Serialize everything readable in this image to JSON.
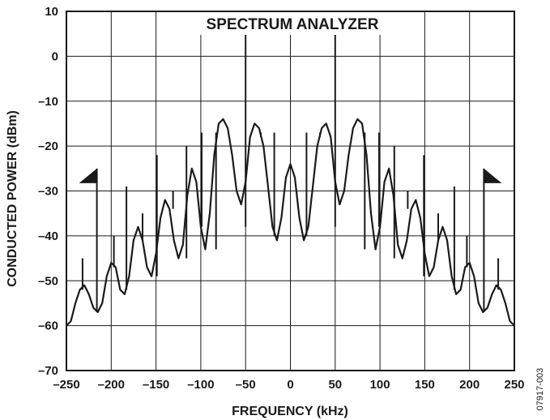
{
  "chart_data": {
    "type": "line",
    "title": "SPECTRUM ANALYZER",
    "xlabel": "FREQUENCY (kHz)",
    "ylabel": "CONDUCTED POWER (dBm)",
    "xlim": [
      -250,
      250
    ],
    "ylim": [
      -70,
      10
    ],
    "xticks": [
      -250,
      -200,
      -150,
      -100,
      -50,
      0,
      50,
      100,
      150,
      200,
      250
    ],
    "xtick_labels": [
      "–250",
      "–200",
      "–150",
      "–100",
      "–50",
      "0",
      "50",
      "100",
      "150",
      "200",
      "250"
    ],
    "yticks": [
      10,
      0,
      -10,
      -20,
      -30,
      -40,
      -50,
      -60,
      -70
    ],
    "ytick_labels": [
      "10",
      "0",
      "–10",
      "–20",
      "–30",
      "–40",
      "–50",
      "–60",
      "–70"
    ],
    "grid": true,
    "line_color": "#1a1a1a",
    "series": [
      {
        "x": [
          -250,
          -245,
          -240,
          -235,
          -230,
          -225,
          -220,
          -215,
          -210,
          -205,
          -200,
          -195,
          -190,
          -185,
          -180,
          -175,
          -170,
          -165,
          -160,
          -155,
          -150,
          -145,
          -140,
          -135,
          -130,
          -125,
          -120,
          -115,
          -110,
          -105,
          -100,
          -95,
          -90,
          -85,
          -80,
          -75,
          -70,
          -65,
          -60,
          -55,
          -50,
          -45,
          -40,
          -35,
          -30,
          -25,
          -20,
          -15,
          -10,
          -5,
          0,
          5,
          10,
          15,
          20,
          25,
          30,
          35,
          40,
          45,
          50,
          55,
          60,
          65,
          70,
          75,
          80,
          85,
          90,
          95,
          100,
          105,
          110,
          115,
          120,
          125,
          130,
          135,
          140,
          145,
          150,
          155,
          160,
          165,
          170,
          175,
          180,
          185,
          190,
          195,
          200,
          205,
          210,
          215,
          220,
          225,
          230,
          235,
          240,
          245,
          250
        ],
        "y": [
          -60,
          -59,
          -55,
          -52,
          -51,
          -53,
          -56,
          -57,
          -55,
          -49,
          -46,
          -47,
          -52,
          -53,
          -49,
          -41,
          -38,
          -41,
          -47,
          -49,
          -44,
          -36,
          -32,
          -34,
          -41,
          -45,
          -42,
          -31,
          -25,
          -28,
          -38,
          -43,
          -35,
          -22,
          -15,
          -14,
          -16,
          -22,
          -30,
          -33,
          -28,
          -18,
          -15,
          -16,
          -20,
          -29,
          -38,
          -41,
          -36,
          -27,
          -24,
          -27,
          -36,
          -41,
          -38,
          -29,
          -20,
          -16,
          -15,
          -18,
          -28,
          -33,
          -30,
          -22,
          -16,
          -14,
          -15,
          -22,
          -35,
          -43,
          -38,
          -28,
          -25,
          -31,
          -42,
          -45,
          -41,
          -34,
          -32,
          -36,
          -44,
          -49,
          -47,
          -41,
          -38,
          -41,
          -49,
          -53,
          -52,
          -47,
          -46,
          -49,
          -55,
          -57,
          -56,
          -53,
          -51,
          -52,
          -55,
          -59,
          -60
        ]
      }
    ],
    "spurs": [
      {
        "x": -250,
        "peak": -38,
        "base": -60
      },
      {
        "x": -232,
        "peak": -45,
        "base": -52
      },
      {
        "x": -216,
        "peak": -25,
        "base": -57
      },
      {
        "x": -197,
        "peak": -40,
        "base": -47
      },
      {
        "x": -183,
        "peak": -29,
        "base": -52
      },
      {
        "x": -165,
        "peak": -35,
        "base": -41
      },
      {
        "x": -149,
        "peak": -22,
        "base": -49
      },
      {
        "x": -131,
        "peak": -30,
        "base": -34
      },
      {
        "x": -116,
        "peak": -20,
        "base": -45
      },
      {
        "x": -99,
        "peak": -17,
        "base": -38
      },
      {
        "x": -83,
        "peak": -17,
        "base": -43
      },
      {
        "x": -50,
        "peak": 5,
        "base": -38
      },
      {
        "x": -33,
        "peak": -18,
        "base": -17
      },
      {
        "x": -18,
        "peak": -17,
        "base": -40
      },
      {
        "x": 18,
        "peak": -17,
        "base": -40
      },
      {
        "x": 33,
        "peak": -18,
        "base": -17
      },
      {
        "x": 50,
        "peak": 5,
        "base": -38
      },
      {
        "x": 83,
        "peak": -17,
        "base": -43
      },
      {
        "x": 99,
        "peak": -17,
        "base": -38
      },
      {
        "x": 116,
        "peak": -20,
        "base": -45
      },
      {
        "x": 131,
        "peak": -30,
        "base": -34
      },
      {
        "x": 149,
        "peak": -22,
        "base": -49
      },
      {
        "x": 165,
        "peak": -35,
        "base": -41
      },
      {
        "x": 183,
        "peak": -29,
        "base": -52
      },
      {
        "x": 197,
        "peak": -40,
        "base": -47
      },
      {
        "x": 216,
        "peak": -25,
        "base": -57
      },
      {
        "x": 232,
        "peak": -45,
        "base": -52
      },
      {
        "x": 250,
        "peak": -38,
        "base": -60
      }
    ],
    "markers": [
      {
        "x": -216,
        "y": -25,
        "direction": "left"
      },
      {
        "x": 216,
        "y": -25,
        "direction": "right"
      }
    ]
  },
  "figure_id": "07917-003"
}
